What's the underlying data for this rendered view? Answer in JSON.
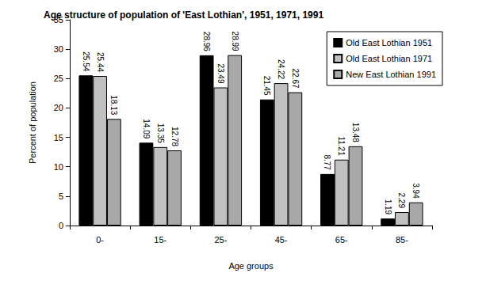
{
  "chart_data": {
    "type": "bar",
    "title": "Age structure of population of 'East Lothian', 1951, 1971, 1991",
    "x_label": "Age groups",
    "y_label": "Percent of population",
    "categories": [
      "0-",
      "15-",
      "25-",
      "45-",
      "65-",
      "85-"
    ],
    "series": [
      {
        "name": "Old East Lothian 1951",
        "color": "#000000",
        "values": [
          25.54,
          14.09,
          28.96,
          21.45,
          8.77,
          1.19
        ]
      },
      {
        "name": "Old East Lothian 1971",
        "color": "#c0c0c0",
        "values": [
          25.44,
          13.35,
          23.49,
          24.22,
          11.21,
          2.29
        ]
      },
      {
        "name": "New East Lothian 1991",
        "color": "#a8a8a8",
        "values": [
          18.13,
          12.78,
          28.99,
          22.67,
          13.48,
          3.94
        ]
      }
    ],
    "ylim": [
      0,
      35
    ],
    "yticks": [
      0,
      5,
      10,
      15,
      20,
      25,
      30,
      35
    ],
    "grid": false,
    "legend": "upper right",
    "data_labels": true
  }
}
